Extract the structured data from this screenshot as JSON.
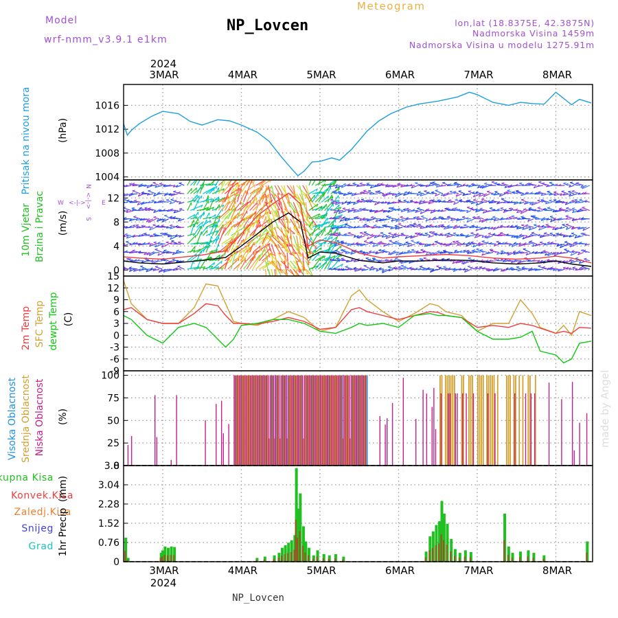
{
  "header": {
    "left_label": "Model",
    "model": "wrf-nmm_v3.9.1 e1km",
    "title": "NP_Lovcen",
    "subtitle": "Meteogram",
    "location": "lon,lat (18.8375E, 42.3875N)",
    "elevation": "Nadmorska Visina 1459m",
    "model_elevation": "Nadmorska Visina u modelu 1275.91m",
    "footer": "NP_Lovcen",
    "watermark": "made by Angel"
  },
  "colors": {
    "pressure": "#1e9ede",
    "wind_cyan": "#00c8d0",
    "wind_green": "#20c020",
    "t2m": "#ee3c3c",
    "sfc": "#d0a030",
    "dewpt": "#10c810",
    "high_cloud": "#2090e0",
    "mid_cloud": "#d0a030",
    "low_cloud": "#c0208a",
    "total_precip": "#20c020",
    "conv_precip": "#ee3c3c",
    "freezing_precip": "#f08030",
    "snow": "#4040e0",
    "hail": "#20c0c0",
    "purple_text": "#a050d0",
    "grid": "#999999"
  },
  "time_axis": {
    "year": "2024",
    "days": [
      "3MAR",
      "4MAR",
      "5MAR",
      "6MAR",
      "7MAR",
      "8MAR"
    ],
    "x_range_days": [
      -0.5,
      5.45
    ]
  },
  "chart_data": [
    {
      "type": "line",
      "id": "pressure",
      "ylabel_main": "Pritisak na nivou mora",
      "ylabel_unit": "(hPa)",
      "ylim": [
        1003.5,
        1019.5
      ],
      "yticks": [
        "1004",
        "1008",
        "1012",
        "1016"
      ],
      "series": [
        {
          "color": "#1e9ede",
          "x": [
            -0.5,
            -0.45,
            -0.4,
            -0.3,
            -0.15,
            0,
            0.2,
            0.35,
            0.5,
            0.7,
            0.85,
            1,
            1.2,
            1.35,
            1.5,
            1.65,
            1.72,
            1.8,
            1.9,
            2,
            2.15,
            2.25,
            2.4,
            2.6,
            2.75,
            2.9,
            3.1,
            3.25,
            3.5,
            3.75,
            3.9,
            4.0,
            4.2,
            4.4,
            4.55,
            4.7,
            4.85,
            5.0,
            5.2,
            5.3,
            5.45
          ],
          "y": [
            1013,
            1011,
            1011.8,
            1012.9,
            1014.1,
            1015,
            1014.6,
            1013.3,
            1012.7,
            1013.6,
            1013.4,
            1012.7,
            1011.5,
            1010,
            1007.5,
            1005.2,
            1004.2,
            1005,
            1006.5,
            1006.6,
            1007.2,
            1006.8,
            1008.6,
            1011.7,
            1013.4,
            1014.6,
            1015.7,
            1016.2,
            1016.7,
            1017.4,
            1018.2,
            1017.8,
            1016.5,
            1016,
            1016.5,
            1016.3,
            1016.2,
            1018.2,
            1016.1,
            1017,
            1016.4
          ]
        }
      ]
    },
    {
      "type": "line",
      "id": "wind",
      "ylabel_main": "10m Vjetar",
      "ylabel_main2": "Brzina i Pravac",
      "ylabel_unit": "(m/s)",
      "compass": {
        "w": "W",
        "e": "E",
        "n": "N",
        "s": "S",
        "arrow_e": "<-|->",
        "arrow_n": "<-|->"
      },
      "ylim": [
        -1,
        15
      ],
      "yticks": [
        "0",
        "4",
        "8",
        "12"
      ],
      "series": [
        {
          "name": "speed",
          "color": "#000000",
          "x": [
            -0.5,
            -0.3,
            0,
            0.5,
            0.8,
            1,
            1.2,
            1.4,
            1.6,
            1.75,
            1.85,
            2,
            2.2,
            2.5,
            2.8,
            3,
            3.3,
            3.6,
            3.9,
            4.2,
            4.5,
            4.8,
            5,
            5.2,
            5.45
          ],
          "y": [
            1.5,
            1.2,
            1.0,
            1.6,
            2.1,
            4,
            6,
            8,
            9.5,
            8,
            2,
            3,
            2.8,
            1.6,
            1.2,
            1.5,
            1.5,
            1.7,
            1.6,
            1.2,
            1.0,
            1.2,
            1.5,
            1.0,
            0.6
          ]
        },
        {
          "name": "gust",
          "color": "#ee3c3c",
          "x": [
            -0.5,
            -0.3,
            0,
            0.5,
            0.8,
            1,
            1.2,
            1.4,
            1.6,
            1.75,
            1.85,
            2,
            2.2,
            2.5,
            2.8,
            3,
            3.3,
            3.6,
            3.9,
            4.2,
            4.5,
            4.8,
            5,
            5.2,
            5.45
          ],
          "y": [
            2.2,
            2.0,
            1.8,
            2.5,
            3.2,
            6,
            9,
            11,
            12.8,
            11,
            4,
            5,
            4.6,
            2.8,
            2.0,
            2.2,
            2.4,
            2.6,
            2.4,
            2.0,
            1.8,
            2.0,
            2.3,
            2.0,
            1.2
          ]
        }
      ]
    },
    {
      "type": "line",
      "id": "temperature",
      "ylabel_main": "2m Temp",
      "ylabel_main2": "SFC Temp",
      "ylabel_main3": "dewpt Temp",
      "ylabel_unit": "(C)",
      "ylim": [
        -9,
        15
      ],
      "yticks": [
        "-9",
        "-6",
        "-3",
        "0",
        "3",
        "6",
        "9",
        "12",
        "15"
      ],
      "series": [
        {
          "name": "SFC Temp",
          "color": "#d0a030",
          "x": [
            -0.5,
            -0.4,
            -0.2,
            0,
            0.2,
            0.4,
            0.55,
            0.7,
            0.8,
            0.9,
            1,
            1.2,
            1.4,
            1.6,
            1.8,
            2,
            2.2,
            2.4,
            2.5,
            2.6,
            2.8,
            3,
            3.2,
            3.4,
            3.5,
            3.6,
            3.8,
            4,
            4.2,
            4.4,
            4.55,
            4.7,
            4.8,
            5,
            5.1,
            5.2,
            5.3,
            5.45
          ],
          "y": [
            14,
            8,
            4,
            3,
            3,
            7,
            13,
            12.5,
            8,
            3.5,
            3,
            2.5,
            4,
            6,
            4.5,
            1,
            2,
            10,
            11.5,
            9,
            6,
            3.5,
            5.5,
            8,
            7.5,
            6,
            5,
            1,
            3,
            3,
            9,
            5.5,
            2,
            0.5,
            2.5,
            0,
            6,
            5
          ]
        },
        {
          "name": "2m Temp",
          "color": "#ee3c3c",
          "x": [
            -0.5,
            -0.4,
            -0.2,
            0,
            0.2,
            0.4,
            0.55,
            0.7,
            0.8,
            0.9,
            1,
            1.2,
            1.4,
            1.6,
            1.8,
            2,
            2.2,
            2.4,
            2.5,
            2.6,
            2.8,
            3,
            3.2,
            3.4,
            3.5,
            3.6,
            3.8,
            4,
            4.2,
            4.4,
            4.55,
            4.7,
            4.8,
            5,
            5.1,
            5.2,
            5.3,
            5.45
          ],
          "y": [
            6.5,
            7,
            4,
            3,
            3,
            5.5,
            8,
            7.5,
            5,
            3,
            3,
            2.8,
            3.5,
            4.5,
            3.5,
            1.5,
            2,
            6.5,
            7,
            6,
            5,
            4,
            5,
            6,
            5.8,
            5,
            4.5,
            2,
            2.5,
            2,
            3,
            2.5,
            1.8,
            0.5,
            1,
            0.5,
            2,
            1.8
          ]
        },
        {
          "name": "dewpt Temp",
          "color": "#10c810",
          "x": [
            -0.5,
            -0.4,
            -0.2,
            0,
            0.2,
            0.4,
            0.55,
            0.7,
            0.8,
            0.9,
            1,
            1.2,
            1.4,
            1.6,
            1.8,
            2,
            2.2,
            2.4,
            2.5,
            2.6,
            2.8,
            3,
            3.2,
            3.4,
            3.5,
            3.6,
            3.8,
            4,
            4.2,
            4.4,
            4.55,
            4.7,
            4.8,
            5,
            5.1,
            5.2,
            5.3,
            5.45
          ],
          "y": [
            5,
            4,
            0,
            -2,
            2,
            3,
            2,
            -1,
            -3,
            -1,
            2.5,
            3,
            4,
            4,
            3,
            1,
            0.5,
            2,
            3,
            2.5,
            3,
            2,
            5,
            5.5,
            5,
            5,
            4.5,
            1,
            -1,
            -1,
            -0.5,
            1,
            -4,
            -5,
            -7,
            -6,
            -2,
            -1.5
          ]
        }
      ]
    },
    {
      "type": "bar",
      "id": "cloud",
      "ylabel_main": "Visoka Oblacnost",
      "ylabel_main2": "Srednja Oblacnost",
      "ylabel_main3": "Niska Oblacnost",
      "ylabel_unit": "(%)",
      "ylim": [
        0,
        105
      ],
      "yticks": [
        "0",
        "25",
        "50",
        "75",
        "100"
      ]
    },
    {
      "type": "bar",
      "id": "precip",
      "ylabel_main": "1hr Precip",
      "ylabel_unit": "(mm)",
      "legend": [
        "Ukupna Kisa",
        "Konvek.Kisa",
        "Zaledj.Kisa",
        "Snijeg",
        "Grad"
      ],
      "ylim": [
        0,
        3.8
      ],
      "yticks": [
        "0",
        "0.76",
        "1.52",
        "2.28",
        "3.04",
        "3.8"
      ],
      "values": [
        {
          "x": -0.47,
          "y": 0.95
        },
        {
          "x": -0.44,
          "y": 0.15
        },
        {
          "x": -0.02,
          "y": 0.35
        },
        {
          "x": 0.0,
          "y": 0.45
        },
        {
          "x": 0.03,
          "y": 0.6
        },
        {
          "x": 0.07,
          "y": 0.55
        },
        {
          "x": 0.11,
          "y": 0.6
        },
        {
          "x": 0.15,
          "y": 0.58
        },
        {
          "x": 1.2,
          "y": 0.15
        },
        {
          "x": 1.3,
          "y": 0.2
        },
        {
          "x": 1.42,
          "y": 0.25
        },
        {
          "x": 1.48,
          "y": 0.35
        },
        {
          "x": 1.52,
          "y": 0.55
        },
        {
          "x": 1.56,
          "y": 0.65
        },
        {
          "x": 1.6,
          "y": 0.75
        },
        {
          "x": 1.64,
          "y": 0.85
        },
        {
          "x": 1.68,
          "y": 1.05
        },
        {
          "x": 1.7,
          "y": 3.7
        },
        {
          "x": 1.72,
          "y": 2.1
        },
        {
          "x": 1.75,
          "y": 2.7
        },
        {
          "x": 1.79,
          "y": 1.4
        },
        {
          "x": 1.82,
          "y": 0.8
        },
        {
          "x": 1.86,
          "y": 0.55
        },
        {
          "x": 1.92,
          "y": 0.25
        },
        {
          "x": 1.97,
          "y": 0.45
        },
        {
          "x": 2.05,
          "y": 0.3
        },
        {
          "x": 2.12,
          "y": 0.25
        },
        {
          "x": 2.2,
          "y": 0.3
        },
        {
          "x": 2.3,
          "y": 0.2
        },
        {
          "x": 3.35,
          "y": 0.4
        },
        {
          "x": 3.4,
          "y": 1.0
        },
        {
          "x": 3.44,
          "y": 1.2
        },
        {
          "x": 3.48,
          "y": 1.45
        },
        {
          "x": 3.52,
          "y": 1.6
        },
        {
          "x": 3.55,
          "y": 2.4
        },
        {
          "x": 3.58,
          "y": 1.9
        },
        {
          "x": 3.62,
          "y": 1.5
        },
        {
          "x": 3.67,
          "y": 0.9
        },
        {
          "x": 3.72,
          "y": 0.5
        },
        {
          "x": 3.78,
          "y": 0.35
        },
        {
          "x": 3.85,
          "y": 0.45
        },
        {
          "x": 3.92,
          "y": 0.38
        },
        {
          "x": 4.35,
          "y": 1.9
        },
        {
          "x": 4.4,
          "y": 0.6
        },
        {
          "x": 4.45,
          "y": 0.35
        },
        {
          "x": 4.55,
          "y": 0.4
        },
        {
          "x": 4.65,
          "y": 0.45
        },
        {
          "x": 4.72,
          "y": 0.35
        },
        {
          "x": 4.85,
          "y": 0.25
        },
        {
          "x": 5.4,
          "y": 0.8
        }
      ]
    }
  ]
}
